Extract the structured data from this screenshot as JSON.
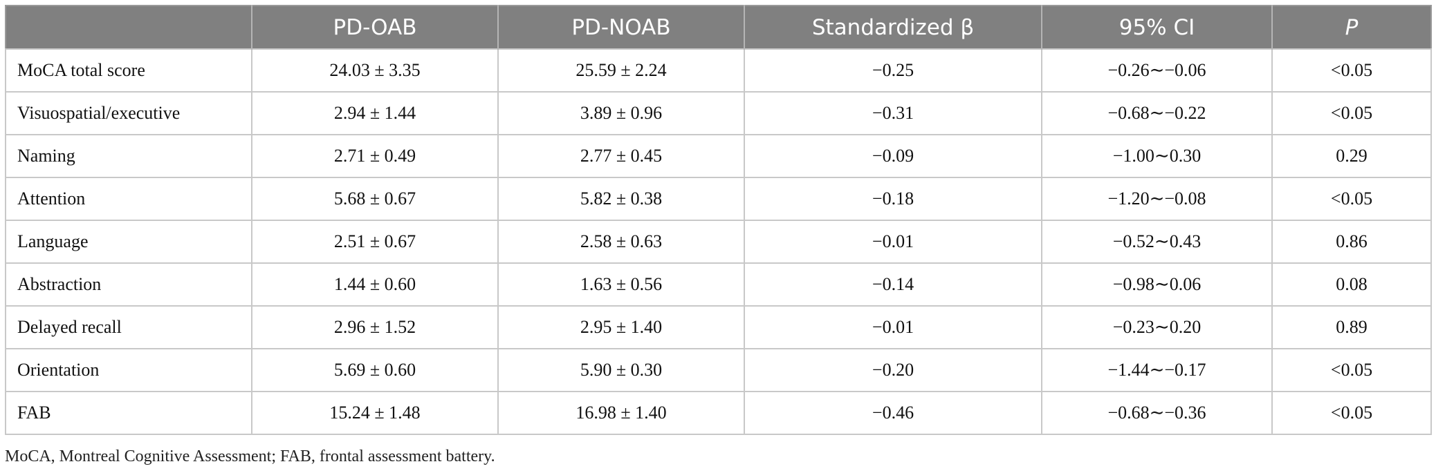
{
  "table": {
    "header": [
      "",
      "PD-OAB",
      "PD-NOAB",
      "Standardized β",
      "95% CI",
      "P"
    ],
    "rows": [
      [
        "MoCA total score",
        "24.03 ± 3.35",
        "25.59 ± 2.24",
        "−0.25",
        "−0.26∼−0.06",
        "<0.05"
      ],
      [
        "Visuospatial/executive",
        "2.94 ± 1.44",
        "3.89 ± 0.96",
        "−0.31",
        "−0.68∼−0.22",
        "<0.05"
      ],
      [
        "Naming",
        "2.71 ± 0.49",
        "2.77 ± 0.45",
        "−0.09",
        "−1.00∼0.30",
        "0.29"
      ],
      [
        "Attention",
        "5.68 ± 0.67",
        "5.82 ± 0.38",
        "−0.18",
        "−1.20∼−0.08",
        "<0.05"
      ],
      [
        "Language",
        "2.51 ± 0.67",
        "2.58 ± 0.63",
        "−0.01",
        "−0.52∼0.43",
        "0.86"
      ],
      [
        "Abstraction",
        "1.44 ± 0.60",
        "1.63 ± 0.56",
        "−0.14",
        "−0.98∼0.06",
        "0.08"
      ],
      [
        "Delayed recall",
        "2.96 ± 1.52",
        "2.95 ± 1.40",
        "−0.01",
        "−0.23∼0.20",
        "0.89"
      ],
      [
        "Orientation",
        "5.69 ± 0.60",
        "5.90 ± 0.30",
        "−0.20",
        "−1.44∼−0.17",
        "<0.05"
      ],
      [
        "FAB",
        "15.24 ± 1.48",
        "16.98 ± 1.40",
        "−0.46",
        "−0.68∼−0.36",
        "<0.05"
      ]
    ]
  },
  "footnote": "MoCA, Montreal Cognitive Assessment; FAB, frontal assessment battery."
}
